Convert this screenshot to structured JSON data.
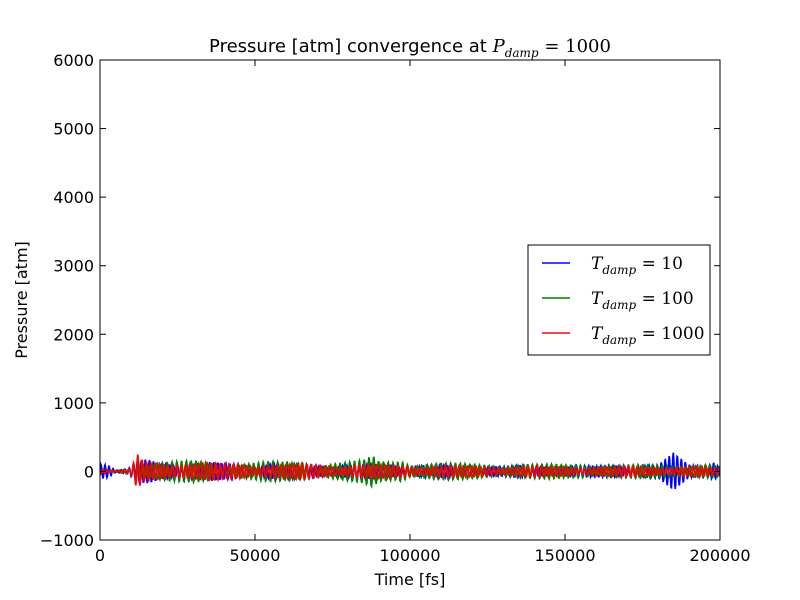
{
  "chart_data": {
    "type": "line",
    "title": "Pressure [atm] convergence at P_damp = 1000",
    "title_prefix": "Pressure [atm] convergence at ",
    "title_math_base": "P",
    "title_math_sub": "damp",
    "title_math_rhs": " = 1000",
    "xlabel": "Time [fs]",
    "ylabel": "Pressure [atm]",
    "xlim": [
      0,
      200000
    ],
    "ylim": [
      -1000,
      6000
    ],
    "x_ticks": [
      0,
      50000,
      100000,
      150000,
      200000
    ],
    "x_tick_labels": [
      "0",
      "50000",
      "100000",
      "150000",
      "200000"
    ],
    "y_ticks": [
      -1000,
      0,
      1000,
      2000,
      3000,
      4000,
      5000,
      6000
    ],
    "y_tick_labels": [
      "−1000",
      "0",
      "1000",
      "2000",
      "3000",
      "4000",
      "5000",
      "6000"
    ],
    "grid": false,
    "legend_position": "center-right",
    "series": [
      {
        "name": "T_damp = 10",
        "label_base": "T",
        "label_sub": "damp",
        "label_rhs": " = 10",
        "color": "#0000ff",
        "envelope": [
          [
            0,
            180
          ],
          [
            2000,
            -150
          ],
          [
            5000,
            20
          ],
          [
            9000,
            -40
          ],
          [
            12000,
            150
          ],
          [
            15000,
            -180
          ],
          [
            20000,
            140
          ],
          [
            25000,
            -150
          ],
          [
            30000,
            130
          ],
          [
            35000,
            -140
          ],
          [
            40000,
            120
          ],
          [
            45000,
            -130
          ],
          [
            50000,
            110
          ],
          [
            55000,
            -120
          ],
          [
            60000,
            110
          ],
          [
            65000,
            -110
          ],
          [
            70000,
            100
          ],
          [
            75000,
            -110
          ],
          [
            80000,
            100
          ],
          [
            85000,
            -100
          ],
          [
            90000,
            110
          ],
          [
            95000,
            -100
          ],
          [
            100000,
            90
          ],
          [
            105000,
            -100
          ],
          [
            110000,
            90
          ],
          [
            115000,
            -90
          ],
          [
            120000,
            80
          ],
          [
            125000,
            -90
          ],
          [
            130000,
            80
          ],
          [
            135000,
            -90
          ],
          [
            140000,
            80
          ],
          [
            145000,
            -80
          ],
          [
            150000,
            80
          ],
          [
            155000,
            -90
          ],
          [
            160000,
            80
          ],
          [
            165000,
            -100
          ],
          [
            170000,
            90
          ],
          [
            175000,
            -110
          ],
          [
            180000,
            100
          ],
          [
            184000,
            240
          ],
          [
            185000,
            -280
          ],
          [
            190000,
            110
          ],
          [
            195000,
            -120
          ],
          [
            198000,
            190
          ],
          [
            200000,
            -60
          ]
        ]
      },
      {
        "name": "T_damp = 100",
        "label_base": "T",
        "label_sub": "damp",
        "label_rhs": " = 100",
        "color": "#008000",
        "envelope": [
          [
            0,
            0
          ],
          [
            5000,
            10
          ],
          [
            10000,
            -60
          ],
          [
            12000,
            -260
          ],
          [
            15000,
            120
          ],
          [
            20000,
            -150
          ],
          [
            25000,
            150
          ],
          [
            30000,
            -160
          ],
          [
            35000,
            140
          ],
          [
            40000,
            -130
          ],
          [
            45000,
            140
          ],
          [
            50000,
            -140
          ],
          [
            55000,
            150
          ],
          [
            60000,
            -130
          ],
          [
            65000,
            140
          ],
          [
            70000,
            -140
          ],
          [
            75000,
            150
          ],
          [
            80000,
            -150
          ],
          [
            85000,
            170
          ],
          [
            88000,
            -230
          ],
          [
            90000,
            150
          ],
          [
            95000,
            -150
          ],
          [
            97000,
            200
          ],
          [
            100000,
            -140
          ],
          [
            105000,
            130
          ],
          [
            110000,
            -130
          ],
          [
            115000,
            120
          ],
          [
            120000,
            -110
          ],
          [
            125000,
            110
          ],
          [
            130000,
            -110
          ],
          [
            135000,
            120
          ],
          [
            140000,
            -110
          ],
          [
            145000,
            110
          ],
          [
            150000,
            -100
          ],
          [
            155000,
            120
          ],
          [
            160000,
            -110
          ],
          [
            165000,
            110
          ],
          [
            170000,
            -100
          ],
          [
            175000,
            100
          ],
          [
            180000,
            -100
          ],
          [
            185000,
            110
          ],
          [
            190000,
            -110
          ],
          [
            195000,
            120
          ],
          [
            200000,
            -80
          ]
        ]
      },
      {
        "name": "T_damp = 1000",
        "label_base": "T",
        "label_sub": "damp",
        "label_rhs": " = 1000",
        "color": "#ff0000",
        "envelope": [
          [
            0,
            -60
          ],
          [
            3000,
            -20
          ],
          [
            6000,
            10
          ],
          [
            10000,
            40
          ],
          [
            12000,
            260
          ],
          [
            14000,
            -150
          ],
          [
            20000,
            130
          ],
          [
            25000,
            -140
          ],
          [
            30000,
            120
          ],
          [
            35000,
            -130
          ],
          [
            40000,
            110
          ],
          [
            45000,
            -120
          ],
          [
            50000,
            110
          ],
          [
            55000,
            -110
          ],
          [
            60000,
            100
          ],
          [
            65000,
            -110
          ],
          [
            70000,
            100
          ],
          [
            75000,
            -100
          ],
          [
            80000,
            100
          ],
          [
            85000,
            -100
          ],
          [
            90000,
            100
          ],
          [
            95000,
            -90
          ],
          [
            100000,
            90
          ],
          [
            105000,
            -90
          ],
          [
            110000,
            90
          ],
          [
            115000,
            -80
          ],
          [
            120000,
            80
          ],
          [
            125000,
            -80
          ],
          [
            130000,
            80
          ],
          [
            135000,
            -80
          ],
          [
            140000,
            80
          ],
          [
            145000,
            -70
          ],
          [
            150000,
            80
          ],
          [
            155000,
            -70
          ],
          [
            160000,
            80
          ],
          [
            165000,
            -70
          ],
          [
            170000,
            80
          ],
          [
            175000,
            -70
          ],
          [
            180000,
            80
          ],
          [
            185000,
            -70
          ],
          [
            190000,
            80
          ],
          [
            195000,
            -70
          ],
          [
            200000,
            40
          ]
        ]
      }
    ]
  }
}
